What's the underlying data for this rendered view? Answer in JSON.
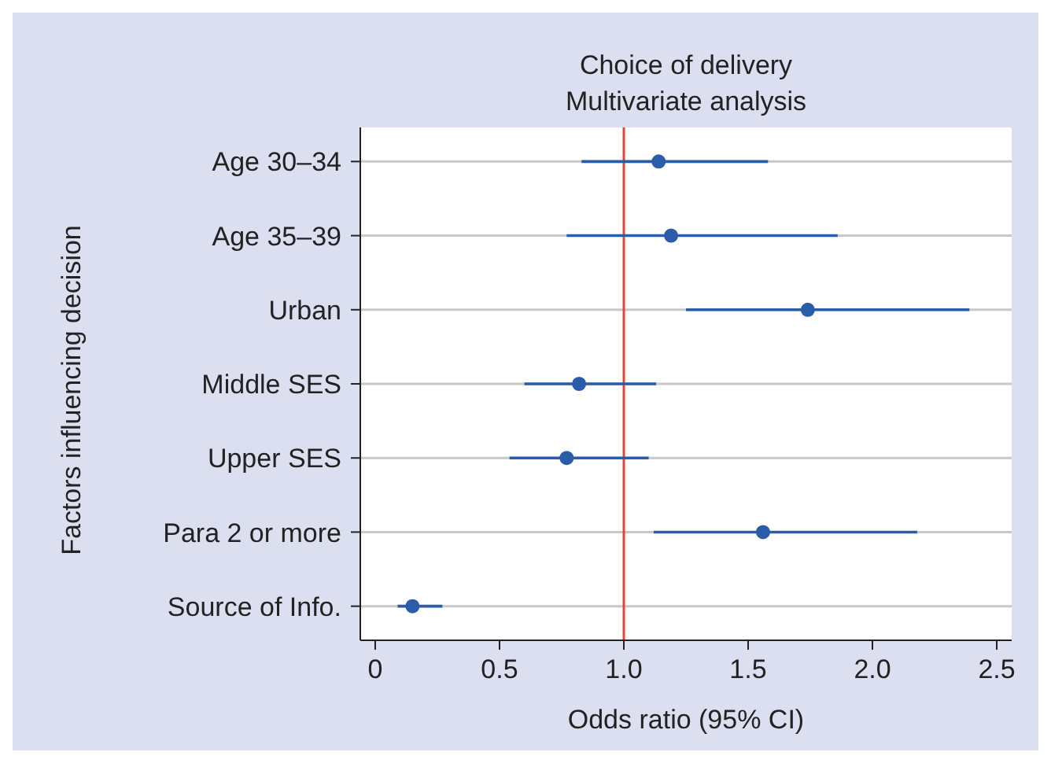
{
  "chart_data": {
    "type": "scatter",
    "title": "Choice of delivery\nMultivariate analysis",
    "xlabel": "Odds ratio (95% CI)",
    "ylabel": "Factors influencing decision",
    "orientation": "horizontal",
    "categories": [
      "Age 30–34",
      "Age 35–39",
      "Urban",
      "Middle SES",
      "Upper SES",
      "Para 2 or more",
      "Source of Info."
    ],
    "series": [
      {
        "color": "#2a5caa",
        "values": [
          1.14,
          1.19,
          1.74,
          0.82,
          0.77,
          1.56,
          0.15
        ],
        "errors": [
          [
            0.83,
            1.58
          ],
          [
            0.77,
            1.86
          ],
          [
            1.25,
            2.39
          ],
          [
            0.6,
            1.13
          ],
          [
            0.54,
            1.1
          ],
          [
            1.12,
            2.18
          ],
          [
            0.09,
            0.27
          ]
        ]
      }
    ],
    "xlim": [
      -0.06,
      2.56
    ],
    "xticks": [
      0,
      {
        "value": 0.5,
        "label": "0.5"
      },
      {
        "value": 1,
        "label": "1.0"
      },
      {
        "value": 1.5,
        "label": "1.5"
      },
      {
        "value": 2,
        "label": "2.0"
      },
      {
        "value": 2.5,
        "label": "2.5"
      }
    ],
    "ref_lines": [
      {
        "axis": "x",
        "value": 1,
        "color": "#e8413c"
      }
    ],
    "grid": "y",
    "marker": "circle"
  }
}
